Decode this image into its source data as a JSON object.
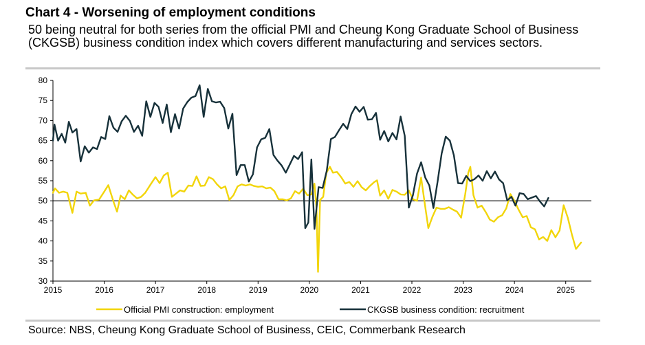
{
  "header": {
    "title": "Chart 4 - Worsening of employment conditions",
    "subtitle": "50 being neutral for both series from the official PMI and Cheung Kong Graduate School of Business (CKGSB) business condition index which covers different manufacturing and services sectors."
  },
  "footer": {
    "source": "Source: NBS, Cheung Kong Graduate School of Business, CEIC, Commerbank Research"
  },
  "chart_data": {
    "type": "line",
    "title": "",
    "xlabel": "",
    "ylabel": "",
    "ylim": [
      30,
      80
    ],
    "yticks": [
      30,
      35,
      40,
      45,
      50,
      55,
      60,
      65,
      70,
      75,
      80
    ],
    "xlim": [
      2015.0,
      2025.5
    ],
    "xticks": [
      "2015",
      "2016",
      "2017",
      "2018",
      "2019",
      "2020",
      "2021",
      "2022",
      "2023",
      "2024",
      "2025"
    ],
    "reference_line": 50,
    "grid": false,
    "legend_position": "bottom",
    "series": [
      {
        "name": "Official PMI construction: employment",
        "color": "#f2d50a",
        "points": [
          [
            2015.0,
            52.0
          ],
          [
            2015.04,
            53.1
          ],
          [
            2015.12,
            52.0
          ],
          [
            2015.2,
            52.3
          ],
          [
            2015.28,
            52.0
          ],
          [
            2015.38,
            47.0
          ],
          [
            2015.46,
            52.3
          ],
          [
            2015.54,
            51.8
          ],
          [
            2015.64,
            52.0
          ],
          [
            2015.72,
            48.8
          ],
          [
            2015.8,
            50.1
          ],
          [
            2015.9,
            50.3
          ],
          [
            2016.0,
            52.3
          ],
          [
            2016.08,
            53.9
          ],
          [
            2016.18,
            49.8
          ],
          [
            2016.25,
            47.3
          ],
          [
            2016.32,
            51.3
          ],
          [
            2016.4,
            50.4
          ],
          [
            2016.48,
            52.6
          ],
          [
            2016.56,
            51.5
          ],
          [
            2016.64,
            50.6
          ],
          [
            2016.72,
            51.0
          ],
          [
            2016.8,
            52.0
          ],
          [
            2016.9,
            54.0
          ],
          [
            2017.0,
            55.9
          ],
          [
            2017.08,
            54.4
          ],
          [
            2017.16,
            56.3
          ],
          [
            2017.24,
            57.0
          ],
          [
            2017.32,
            51.0
          ],
          [
            2017.4,
            51.8
          ],
          [
            2017.48,
            52.6
          ],
          [
            2017.56,
            52.3
          ],
          [
            2017.64,
            53.8
          ],
          [
            2017.72,
            53.7
          ],
          [
            2017.8,
            56.1
          ],
          [
            2017.88,
            53.7
          ],
          [
            2017.96,
            53.8
          ],
          [
            2018.04,
            55.9
          ],
          [
            2018.12,
            55.4
          ],
          [
            2018.2,
            54.1
          ],
          [
            2018.28,
            53.1
          ],
          [
            2018.36,
            53.6
          ],
          [
            2018.44,
            50.2
          ],
          [
            2018.52,
            51.4
          ],
          [
            2018.6,
            53.6
          ],
          [
            2018.68,
            54.1
          ],
          [
            2018.76,
            53.8
          ],
          [
            2018.84,
            54.1
          ],
          [
            2018.92,
            53.7
          ],
          [
            2019.0,
            53.5
          ],
          [
            2019.08,
            53.6
          ],
          [
            2019.16,
            53.1
          ],
          [
            2019.24,
            53.3
          ],
          [
            2019.32,
            52.4
          ],
          [
            2019.4,
            50.4
          ],
          [
            2019.48,
            50.4
          ],
          [
            2019.56,
            50.1
          ],
          [
            2019.64,
            50.6
          ],
          [
            2019.72,
            52.4
          ],
          [
            2019.8,
            51.8
          ],
          [
            2019.88,
            53.0
          ],
          [
            2019.96,
            51.4
          ],
          [
            2020.04,
            51.6
          ],
          [
            2020.1,
            54.3
          ],
          [
            2020.14,
            48.1
          ],
          [
            2020.17,
            32.3
          ],
          [
            2020.21,
            50.2
          ],
          [
            2020.27,
            51.0
          ],
          [
            2020.33,
            56.9
          ],
          [
            2020.4,
            58.5
          ],
          [
            2020.46,
            57.0
          ],
          [
            2020.54,
            57.2
          ],
          [
            2020.62,
            55.9
          ],
          [
            2020.7,
            54.3
          ],
          [
            2020.78,
            54.7
          ],
          [
            2020.86,
            53.5
          ],
          [
            2020.94,
            54.9
          ],
          [
            2021.02,
            53.4
          ],
          [
            2021.1,
            52.6
          ],
          [
            2021.18,
            53.7
          ],
          [
            2021.26,
            54.6
          ],
          [
            2021.32,
            55.1
          ],
          [
            2021.38,
            51.3
          ],
          [
            2021.46,
            52.6
          ],
          [
            2021.54,
            50.5
          ],
          [
            2021.62,
            52.7
          ],
          [
            2021.7,
            52.3
          ],
          [
            2021.78,
            51.6
          ],
          [
            2021.86,
            51.5
          ],
          [
            2021.94,
            52.6
          ],
          [
            2022.02,
            50.4
          ],
          [
            2022.1,
            50.0
          ],
          [
            2022.18,
            55.8
          ],
          [
            2022.26,
            48.5
          ],
          [
            2022.32,
            43.2
          ],
          [
            2022.4,
            46.0
          ],
          [
            2022.48,
            48.3
          ],
          [
            2022.56,
            48.0
          ],
          [
            2022.64,
            48.0
          ],
          [
            2022.72,
            48.4
          ],
          [
            2022.8,
            47.8
          ],
          [
            2022.88,
            47.3
          ],
          [
            2022.96,
            45.8
          ],
          [
            2023.04,
            51.7
          ],
          [
            2023.1,
            57.0
          ],
          [
            2023.14,
            58.5
          ],
          [
            2023.2,
            51.4
          ],
          [
            2023.28,
            48.3
          ],
          [
            2023.36,
            48.8
          ],
          [
            2023.44,
            47.2
          ],
          [
            2023.52,
            45.3
          ],
          [
            2023.6,
            44.8
          ],
          [
            2023.68,
            45.9
          ],
          [
            2023.76,
            46.4
          ],
          [
            2023.84,
            48.1
          ],
          [
            2023.92,
            51.7
          ],
          [
            2024.0,
            50.0
          ],
          [
            2024.08,
            47.8
          ],
          [
            2024.16,
            45.9
          ],
          [
            2024.24,
            46.2
          ],
          [
            2024.32,
            43.4
          ],
          [
            2024.4,
            42.9
          ],
          [
            2024.48,
            40.4
          ],
          [
            2024.56,
            41.0
          ],
          [
            2024.64,
            40.0
          ],
          [
            2024.72,
            42.7
          ],
          [
            2024.8,
            40.9
          ],
          [
            2024.88,
            42.6
          ],
          [
            2024.96,
            48.9
          ],
          [
            2025.04,
            45.8
          ],
          [
            2025.12,
            41.6
          ],
          [
            2025.2,
            38.0
          ],
          [
            2025.3,
            39.6
          ]
        ]
      },
      {
        "name": "CKGSB business condition: recruitment",
        "color": "#17313a",
        "points": [
          [
            2015.0,
            65.0
          ],
          [
            2015.03,
            69.0
          ],
          [
            2015.1,
            65.0
          ],
          [
            2015.17,
            66.7
          ],
          [
            2015.24,
            64.5
          ],
          [
            2015.31,
            69.7
          ],
          [
            2015.38,
            67.0
          ],
          [
            2015.46,
            67.9
          ],
          [
            2015.54,
            59.8
          ],
          [
            2015.62,
            63.6
          ],
          [
            2015.7,
            62.0
          ],
          [
            2015.78,
            63.3
          ],
          [
            2015.86,
            62.9
          ],
          [
            2015.94,
            65.9
          ],
          [
            2016.02,
            65.4
          ],
          [
            2016.1,
            71.1
          ],
          [
            2016.18,
            68.2
          ],
          [
            2016.26,
            67.2
          ],
          [
            2016.34,
            69.8
          ],
          [
            2016.42,
            71.2
          ],
          [
            2016.5,
            69.9
          ],
          [
            2016.58,
            67.2
          ],
          [
            2016.66,
            68.7
          ],
          [
            2016.74,
            66.2
          ],
          [
            2016.82,
            74.8
          ],
          [
            2016.9,
            70.9
          ],
          [
            2016.98,
            74.4
          ],
          [
            2017.06,
            73.4
          ],
          [
            2017.14,
            69.4
          ],
          [
            2017.22,
            74.0
          ],
          [
            2017.3,
            67.1
          ],
          [
            2017.38,
            71.6
          ],
          [
            2017.46,
            68.0
          ],
          [
            2017.54,
            73.0
          ],
          [
            2017.62,
            74.6
          ],
          [
            2017.7,
            75.7
          ],
          [
            2017.78,
            76.1
          ],
          [
            2017.86,
            78.8
          ],
          [
            2017.94,
            70.9
          ],
          [
            2018.02,
            77.9
          ],
          [
            2018.1,
            74.8
          ],
          [
            2018.18,
            74.5
          ],
          [
            2018.26,
            74.7
          ],
          [
            2018.34,
            73.1
          ],
          [
            2018.42,
            68.0
          ],
          [
            2018.5,
            71.7
          ],
          [
            2018.58,
            56.4
          ],
          [
            2018.66,
            58.9
          ],
          [
            2018.74,
            58.9
          ],
          [
            2018.82,
            54.8
          ],
          [
            2018.9,
            56.6
          ],
          [
            2018.98,
            63.3
          ],
          [
            2019.06,
            65.3
          ],
          [
            2019.14,
            65.7
          ],
          [
            2019.22,
            67.9
          ],
          [
            2019.3,
            61.4
          ],
          [
            2019.38,
            60.0
          ],
          [
            2019.46,
            58.8
          ],
          [
            2019.54,
            57.0
          ],
          [
            2019.62,
            59.1
          ],
          [
            2019.7,
            61.2
          ],
          [
            2019.78,
            60.4
          ],
          [
            2019.86,
            62.1
          ],
          [
            2019.92,
            43.2
          ],
          [
            2019.98,
            44.6
          ],
          [
            2020.04,
            60.3
          ],
          [
            2020.1,
            43.0
          ],
          [
            2020.18,
            53.4
          ],
          [
            2020.26,
            53.2
          ],
          [
            2020.34,
            57.5
          ],
          [
            2020.42,
            65.4
          ],
          [
            2020.5,
            65.9
          ],
          [
            2020.58,
            67.6
          ],
          [
            2020.66,
            69.2
          ],
          [
            2020.74,
            67.9
          ],
          [
            2020.82,
            71.6
          ],
          [
            2020.9,
            73.5
          ],
          [
            2020.98,
            72.2
          ],
          [
            2021.06,
            73.4
          ],
          [
            2021.14,
            70.2
          ],
          [
            2021.22,
            70.3
          ],
          [
            2021.3,
            71.9
          ],
          [
            2021.38,
            65.2
          ],
          [
            2021.46,
            67.4
          ],
          [
            2021.54,
            64.8
          ],
          [
            2021.62,
            66.9
          ],
          [
            2021.7,
            65.3
          ],
          [
            2021.78,
            71.0
          ],
          [
            2021.86,
            66.2
          ],
          [
            2021.94,
            48.3
          ],
          [
            2022.02,
            51.4
          ],
          [
            2022.1,
            56.8
          ],
          [
            2022.18,
            59.6
          ],
          [
            2022.26,
            55.8
          ],
          [
            2022.34,
            53.8
          ],
          [
            2022.42,
            48.2
          ],
          [
            2022.5,
            54.7
          ],
          [
            2022.58,
            61.8
          ],
          [
            2022.66,
            66.0
          ],
          [
            2022.74,
            65.0
          ],
          [
            2022.82,
            61.3
          ],
          [
            2022.9,
            54.4
          ],
          [
            2022.98,
            54.3
          ],
          [
            2023.06,
            56.2
          ],
          [
            2023.14,
            54.9
          ],
          [
            2023.22,
            55.4
          ],
          [
            2023.3,
            56.3
          ],
          [
            2023.38,
            55.0
          ],
          [
            2023.46,
            57.4
          ],
          [
            2023.54,
            55.6
          ],
          [
            2023.62,
            57.3
          ],
          [
            2023.7,
            55.3
          ],
          [
            2023.78,
            54.4
          ],
          [
            2023.86,
            50.1
          ],
          [
            2023.94,
            51.0
          ],
          [
            2024.02,
            48.8
          ],
          [
            2024.1,
            51.9
          ],
          [
            2024.18,
            51.7
          ],
          [
            2024.26,
            50.4
          ],
          [
            2024.34,
            50.8
          ],
          [
            2024.42,
            51.2
          ],
          [
            2024.5,
            49.8
          ],
          [
            2024.58,
            48.6
          ],
          [
            2024.66,
            50.7
          ]
        ]
      }
    ]
  }
}
